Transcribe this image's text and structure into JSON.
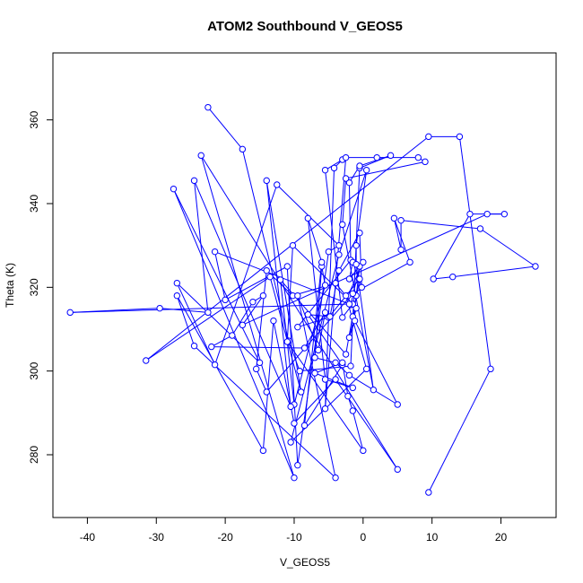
{
  "chart_data": {
    "type": "scatter",
    "title": "ATOM2 Southbound V_GEOS5",
    "xlabel": "V_GEOS5",
    "ylabel": "Theta (K)",
    "xlim": [
      -45,
      28
    ],
    "ylim": [
      265,
      376
    ],
    "xticks": [
      -40,
      -30,
      -20,
      -10,
      0,
      10,
      20
    ],
    "yticks": [
      280,
      300,
      320,
      340,
      360
    ],
    "grid": false,
    "legend": "none",
    "color": "#0000ff",
    "series": [
      {
        "values": [
          [
            -22.5,
            363.0
          ],
          [
            -17.5,
            353.0
          ],
          [
            -10.8,
            307.2
          ],
          [
            -9.2,
            300.0
          ],
          [
            -1.8,
            301.2
          ],
          [
            -0.5,
            348.5
          ],
          [
            4.0,
            351.5
          ],
          [
            -0.5,
            349.0
          ],
          [
            -2.0,
            345.0
          ],
          [
            -1.8,
            326.5
          ],
          [
            -9.5,
            310.5
          ],
          [
            -5.0,
            312.8
          ],
          [
            -0.5,
            322.0
          ],
          [
            -1.5,
            313.0
          ],
          [
            -1.0,
            315.0
          ],
          [
            -2.0,
            308.0
          ],
          [
            -1.2,
            312.0
          ],
          [
            5.0,
            292.0
          ],
          [
            -2.0,
            299.0
          ],
          [
            -4.0,
            302.0
          ],
          [
            -7.0,
            303.2
          ],
          [
            -6.0,
            325.0
          ],
          [
            -5.5,
            320.5
          ],
          [
            -10.0,
            292.0
          ],
          [
            -12.0,
            321.8
          ],
          [
            -2.5,
            304.0
          ],
          [
            -1.0,
            318.0
          ],
          [
            -0.5,
            325.0
          ],
          [
            -1.8,
            315.8
          ],
          [
            -2.2,
            318.0
          ],
          [
            0.0,
            326.0
          ],
          [
            -2.0,
            322.0
          ],
          [
            -1.5,
            326.0
          ],
          [
            -0.2,
            320.0
          ],
          [
            -0.5,
            333.0
          ],
          [
            -3.5,
            324.0
          ],
          [
            -4.8,
            313.0
          ],
          [
            -8.0,
            313.5
          ],
          [
            -3.0,
            301.5
          ],
          [
            -8.5,
            287.0
          ],
          [
            -6.0,
            326.0
          ],
          [
            -8.0,
            336.5
          ],
          [
            -5.5,
            298.0
          ],
          [
            -1.5,
            296.0
          ],
          [
            -7.0,
            299.5
          ],
          [
            -3.0,
            302.0
          ],
          [
            -2.2,
            294.0
          ],
          [
            -1.5,
            290.5
          ],
          [
            0.0,
            281.0
          ],
          [
            -11.0,
            307.0
          ],
          [
            -10.2,
            330.0
          ],
          [
            -1.5,
            316.0
          ],
          [
            -3.0,
            312.8
          ],
          [
            -5.5,
            348.0
          ],
          [
            -3.0,
            350.5
          ],
          [
            -4.2,
            348.5
          ],
          [
            -5.5,
            291.0
          ],
          [
            -2.5,
            351.0
          ],
          [
            2.0,
            351.0
          ],
          [
            8.0,
            351.0
          ],
          [
            9.0,
            350.0
          ],
          [
            -2.5,
            346.0
          ],
          [
            -3.0,
            335.0
          ],
          [
            1.5,
            295.5
          ],
          [
            -1.0,
            325.5
          ],
          [
            -1.0,
            330.0
          ],
          [
            0.5,
            348.0
          ],
          [
            -3.5,
            327.8
          ],
          [
            -10.5,
            283.0
          ],
          [
            0.5,
            300.5
          ],
          [
            -2.5,
            318.0
          ],
          [
            -4.0,
            321.0
          ],
          [
            -10.2,
            318.0
          ],
          [
            -14.0,
            324.0
          ],
          [
            -15.5,
            300.5
          ],
          [
            -14.0,
            295.0
          ],
          [
            -1.5,
            318.5
          ],
          [
            6.8,
            326.0
          ],
          [
            4.5,
            336.5
          ],
          [
            5.5,
            329.0
          ],
          [
            5.5,
            336.0
          ],
          [
            17.0,
            334.0
          ],
          [
            25.0,
            325.0
          ],
          [
            13.0,
            322.5
          ],
          [
            10.2,
            322.0
          ],
          [
            15.5,
            337.5
          ],
          [
            20.5,
            337.5
          ],
          [
            18.0,
            337.5
          ],
          [
            -17.5,
            311.0
          ],
          [
            -14.5,
            318.0
          ],
          [
            -16.0,
            316.5
          ],
          [
            -19.0,
            308.5
          ],
          [
            -22.0,
            305.8
          ],
          [
            -8.5,
            305.5
          ],
          [
            -5.5,
            314.0
          ],
          [
            -6.5,
            305.0
          ],
          [
            -9.5,
            318.0
          ],
          [
            -4.0,
            274.5
          ],
          [
            -24.5,
            306.0
          ],
          [
            -27.0,
            318.0
          ],
          [
            -14.5,
            281.0
          ],
          [
            -13.0,
            312.0
          ],
          [
            -10.0,
            287.5
          ],
          [
            -4.0,
            298.0
          ],
          [
            5.0,
            276.5
          ],
          [
            -23.5,
            351.5
          ],
          [
            -10.0,
            274.5
          ],
          [
            -27.5,
            343.5
          ],
          [
            -15.0,
            302.0
          ],
          [
            -27.0,
            321.0
          ],
          [
            -21.5,
            301.5
          ],
          [
            -12.5,
            344.5
          ],
          [
            -3.5,
            330.0
          ],
          [
            -5.0,
            328.5
          ],
          [
            -9.5,
            277.5
          ],
          [
            -11.0,
            325.0
          ],
          [
            -20.0,
            317.0
          ],
          [
            -21.5,
            328.5
          ],
          [
            -2.0,
            316.0
          ],
          [
            -42.5,
            314.0
          ],
          [
            -29.5,
            315.0
          ],
          [
            -22.5,
            314.0
          ],
          [
            -24.5,
            345.5
          ],
          [
            -10.5,
            291.5
          ],
          [
            -14.0,
            345.5
          ],
          [
            -9.0,
            295.0
          ],
          [
            -13.5,
            322.5
          ],
          [
            -31.5,
            302.5
          ],
          [
            9.5,
            356.0
          ],
          [
            14.0,
            356.0
          ],
          [
            18.5,
            300.5
          ],
          [
            9.5,
            271.0
          ]
        ]
      }
    ]
  }
}
